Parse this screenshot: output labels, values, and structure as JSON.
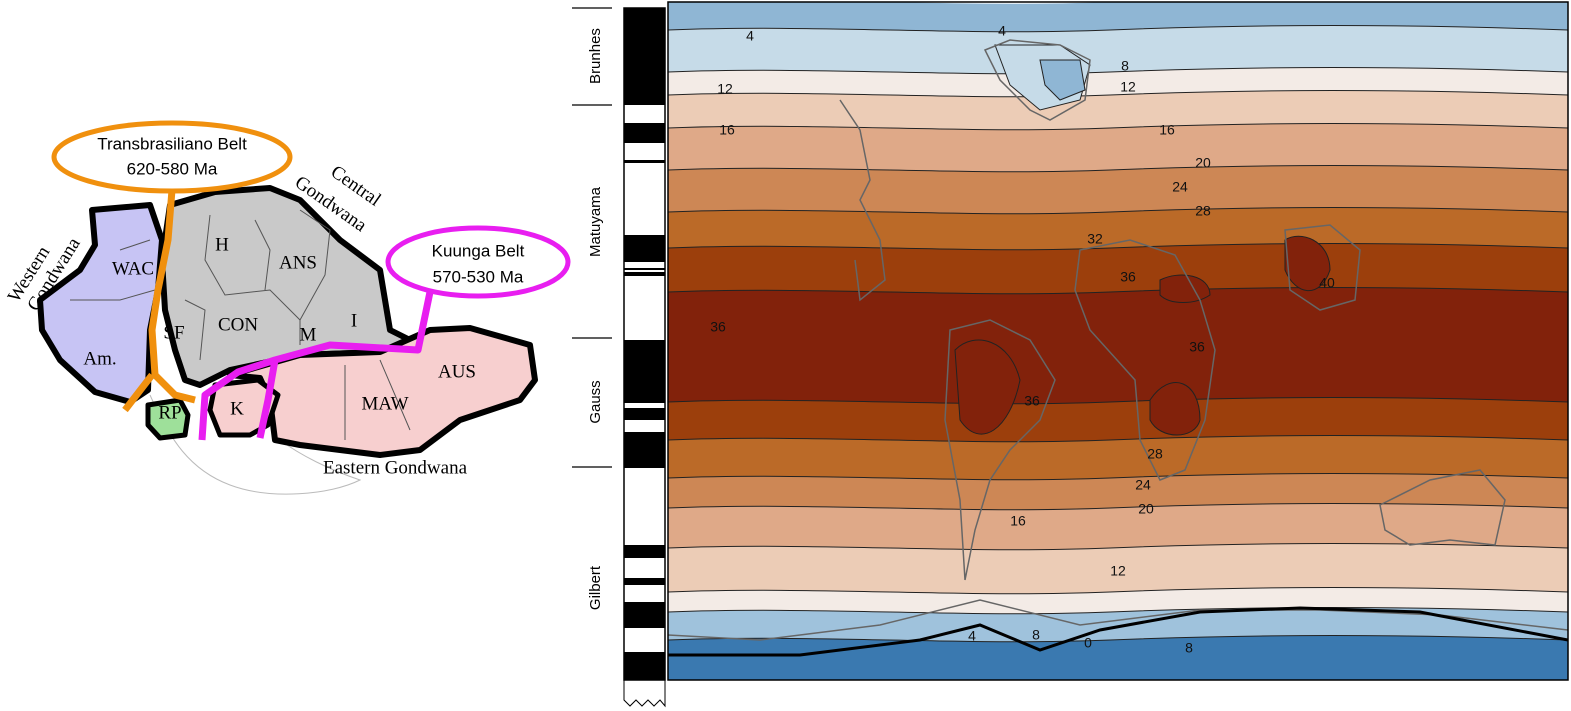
{
  "gondwana_map": {
    "transbrasiliano": {
      "name": "Transbrasiliano Belt",
      "age": "620-580 Ma"
    },
    "kuunga": {
      "name": "Kuunga Belt",
      "age": "570-530 Ma"
    },
    "western_label": [
      "Western",
      "Gondwana"
    ],
    "central_label": [
      "Central",
      "Gondwana"
    ],
    "eastern_label": "Eastern Gondwana",
    "cratons": [
      "WAC",
      "Am.",
      "H",
      "ANS",
      "SF",
      "CON",
      "M",
      "I",
      "RP",
      "K",
      "AUS",
      "MAW"
    ]
  },
  "polarity_column": {
    "chrons": [
      "Brunhes",
      "Matuyama",
      "Gauss",
      "Gilbert"
    ]
  },
  "temperature_map": {
    "contour_labels": [
      4,
      4,
      8,
      12,
      12,
      16,
      16,
      20,
      24,
      28,
      32,
      36,
      36,
      36,
      36,
      40,
      28,
      24,
      20,
      16,
      12,
      4,
      8,
      0,
      8
    ]
  }
}
